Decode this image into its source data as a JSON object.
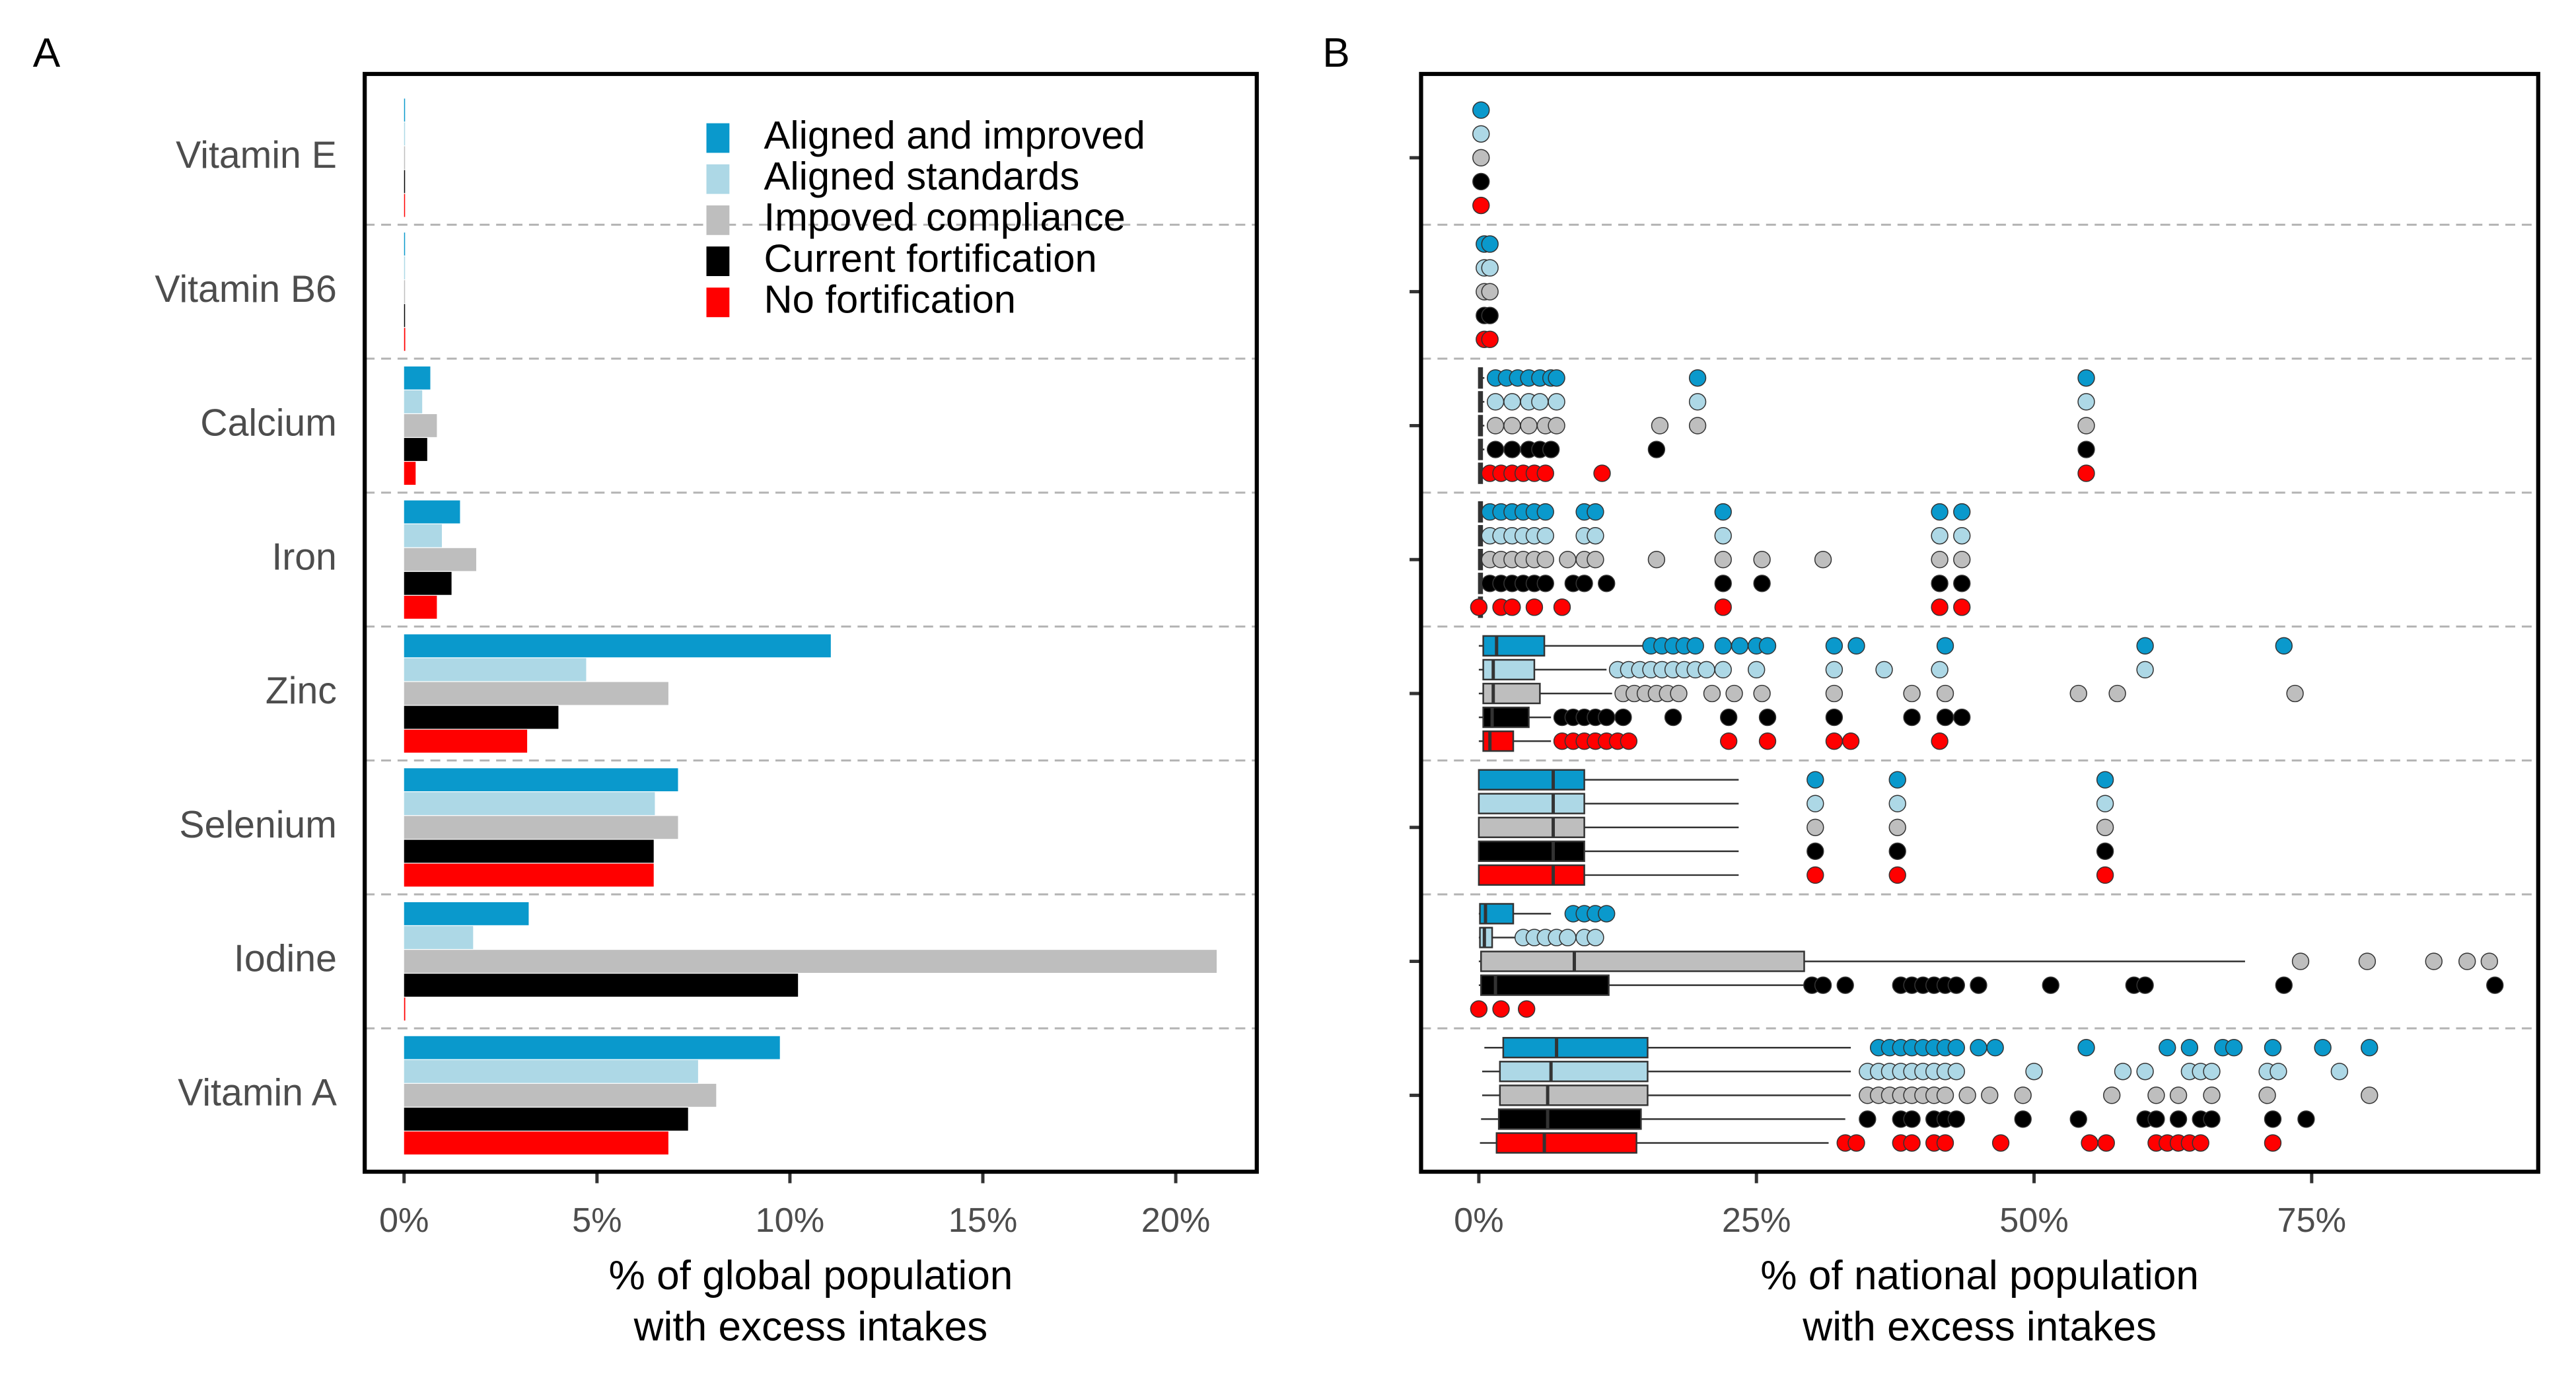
{
  "chart_data": [
    {
      "type": "bar",
      "panel_label": "A",
      "categories": [
        "Vitamin E",
        "Vitamin B6",
        "Calcium",
        "Iron",
        "Zinc",
        "Selenium",
        "Iodine",
        "Vitamin A"
      ],
      "series": [
        {
          "name": "No fortification",
          "color": "#ff0000",
          "values": [
            0,
            0.03,
            0.3,
            0.85,
            3.19,
            6.47,
            0.03,
            6.85
          ]
        },
        {
          "name": "Current fortification",
          "color": "#000000",
          "values": [
            0,
            0.02,
            0.6,
            1.23,
            4.0,
            6.47,
            10.21,
            7.36
          ]
        },
        {
          "name": "Impoved compliance",
          "color": "#bebebe",
          "values": [
            0,
            0.02,
            0.85,
            1.87,
            6.85,
            7.1,
            21.06,
            8.09
          ]
        },
        {
          "name": "Aligned standards",
          "color": "#add8e6",
          "values": [
            0,
            0.02,
            0.47,
            0.98,
            4.72,
            6.5,
            1.79,
            7.62
          ]
        },
        {
          "name": "Aligned and improved",
          "color": "#0a99cc",
          "values": [
            0,
            0.02,
            0.68,
            1.45,
            11.06,
            7.1,
            3.23,
            9.74
          ]
        }
      ],
      "xlim": [
        -1.02,
        22.1
      ],
      "xticks": [
        {
          "value": 0,
          "label": "0%"
        },
        {
          "value": 5,
          "label": "5%"
        },
        {
          "value": 10,
          "label": "10%"
        },
        {
          "value": 15,
          "label": "15%"
        },
        {
          "value": 20,
          "label": "20%"
        }
      ],
      "xlabel": [
        "% of global population",
        "with excess intakes"
      ],
      "legend": "top"
    },
    {
      "type": "box",
      "panel_label": "B",
      "categories": [
        "Vitamin E",
        "Vitamin B6",
        "Calcium",
        "Iron",
        "Zinc",
        "Selenium",
        "Iodine",
        "Vitamin A"
      ],
      "series": [
        {
          "color": "#ff0000",
          "boxes": [
            [
              0,
              0,
              0,
              0,
              0
            ],
            [
              0,
              0,
              0,
              0,
              0
            ],
            [
              0,
              0,
              0.1,
              0.3,
              0.5
            ],
            [
              0,
              0,
              0.1,
              0.3,
              0.5
            ],
            [
              0,
              0.4,
              1.0,
              3.1,
              6.5
            ],
            [
              0,
              0,
              6.7,
              9.5,
              23.4
            ],
            [
              0,
              0,
              0,
              0,
              0
            ],
            [
              0.1,
              1.6,
              5.9,
              14.2,
              31.5
            ]
          ],
          "outliers": [
            [
              0.2
            ],
            [
              0.5,
              1.0
            ],
            [
              1,
              2,
              3,
              4,
              5,
              6,
              11.1,
              54.7
            ],
            [
              0,
              2,
              3,
              5,
              7.5,
              22,
              41.5,
              43.5
            ],
            [
              7.5,
              8.5,
              9.5,
              10.5,
              11.5,
              12.5,
              13.5,
              22.5,
              26,
              32,
              33.5,
              41.5
            ],
            [
              30.3,
              37.7,
              56.4
            ],
            [
              0,
              2,
              4.3
            ],
            [
              33,
              34,
              38,
              39,
              41,
              42,
              47,
              55,
              56.5,
              61,
              62,
              63,
              64,
              65,
              71.5
            ]
          ]
        },
        {
          "color": "#000000",
          "boxes": [
            [
              0,
              0,
              0,
              0,
              0
            ],
            [
              0,
              0,
              0,
              0,
              0
            ],
            [
              0,
              0,
              0.1,
              0.3,
              0.5
            ],
            [
              0,
              0,
              0.1,
              0.3,
              0.5
            ],
            [
              0,
              0.4,
              1.2,
              4.5,
              6.5
            ],
            [
              0,
              0,
              6.7,
              9.5,
              23.4
            ],
            [
              0,
              0.2,
              1.5,
              11.7,
              29.6
            ],
            [
              0.2,
              1.8,
              6.2,
              14.6,
              33
            ]
          ],
          "outliers": [
            [
              0.2
            ],
            [
              0.5,
              1.0
            ],
            [
              1.5,
              3,
              4.5,
              5.5,
              6.5,
              16,
              54.7
            ],
            [
              1,
              2,
              3,
              4,
              5,
              6,
              8.5,
              9.5,
              11.5,
              22,
              25.5,
              41.5,
              43.5
            ],
            [
              7.5,
              8.5,
              9.5,
              10.5,
              11.5,
              13,
              17.5,
              22.5,
              26,
              32,
              39,
              42,
              43.5
            ],
            [
              30.3,
              37.7,
              56.4
            ],
            [
              30,
              31,
              33,
              38,
              39,
              40,
              41,
              42,
              43,
              45,
              51.5,
              59,
              60,
              72.5,
              91.5
            ],
            [
              35,
              38,
              39,
              41,
              42,
              43,
              49,
              54,
              60,
              61,
              63,
              65,
              66,
              71.5,
              74.5
            ]
          ]
        },
        {
          "color": "#bebebe",
          "boxes": [
            [
              0,
              0,
              0,
              0,
              0
            ],
            [
              0,
              0,
              0,
              0,
              0
            ],
            [
              0,
              0,
              0.1,
              0.3,
              0.5
            ],
            [
              0,
              0,
              0.1,
              0.3,
              0.5
            ],
            [
              0,
              0.4,
              1.3,
              5.5,
              12
            ],
            [
              0,
              0,
              6.7,
              9.5,
              23.4
            ],
            [
              0,
              0.2,
              8.6,
              29.3,
              69
            ],
            [
              0.3,
              1.9,
              6.2,
              15.2,
              33.5
            ]
          ],
          "outliers": [
            [
              0.2
            ],
            [
              0.5,
              1.0
            ],
            [
              1.5,
              3,
              4.5,
              6,
              7,
              16.3,
              19.7,
              54.7
            ],
            [
              1,
              2,
              3,
              4,
              5,
              6,
              8,
              9.5,
              10.5,
              16,
              22,
              25.5,
              31,
              41.5,
              43.5
            ],
            [
              13,
              14,
              15,
              16,
              17,
              18,
              21,
              23,
              25.5,
              32,
              39,
              42,
              54,
              57.5,
              73.5
            ],
            [
              30.3,
              37.7,
              56.4
            ],
            [
              74,
              80,
              86,
              89,
              91
            ],
            [
              35,
              36,
              37,
              38,
              39,
              40,
              41,
              42,
              44,
              46,
              49,
              57,
              61,
              63,
              66,
              71,
              80.2
            ]
          ]
        },
        {
          "color": "#add8e6",
          "boxes": [
            [
              0,
              0,
              0,
              0,
              0
            ],
            [
              0,
              0,
              0,
              0,
              0
            ],
            [
              0,
              0,
              0.1,
              0.3,
              0.5
            ],
            [
              0,
              0,
              0.1,
              0.3,
              0.5
            ],
            [
              0,
              0.4,
              1.3,
              5,
              11.5
            ],
            [
              0,
              0,
              6.7,
              9.5,
              23.4
            ],
            [
              0,
              0.1,
              0.5,
              1.2,
              3.5
            ],
            [
              0.3,
              1.9,
              6.5,
              15.2,
              33.5
            ]
          ],
          "outliers": [
            [
              0.2
            ],
            [
              0.5,
              1.0
            ],
            [
              1.5,
              3,
              4.5,
              5.5,
              7,
              19.7,
              54.7
            ],
            [
              1,
              2,
              3,
              4,
              5,
              6,
              9.5,
              10.5,
              22,
              41.5,
              43.5
            ],
            [
              12.5,
              13.5,
              14.5,
              15.5,
              16.5,
              17.5,
              18.5,
              19.5,
              20.5,
              22,
              25,
              32,
              36.5,
              41.5,
              60
            ],
            [
              30.3,
              37.7,
              56.4
            ],
            [
              4,
              5,
              6,
              7,
              8,
              9.5,
              10.5
            ],
            [
              35,
              36,
              37,
              38,
              39,
              40,
              41,
              42,
              43,
              50,
              58,
              60,
              64,
              65,
              66,
              71,
              72,
              77.5
            ]
          ]
        },
        {
          "color": "#0a99cc",
          "boxes": [
            [
              0,
              0,
              0,
              0,
              0
            ],
            [
              0,
              0,
              0,
              0,
              0
            ],
            [
              0,
              0,
              0.1,
              0.3,
              0.5
            ],
            [
              0,
              0,
              0.1,
              0.3,
              0.5
            ],
            [
              0,
              0.4,
              1.6,
              5.9,
              14.8
            ],
            [
              0,
              0,
              6.7,
              9.5,
              23.4
            ],
            [
              0,
              0.1,
              0.6,
              3.1,
              6.5
            ],
            [
              0.5,
              2.2,
              7,
              15.2,
              33.5
            ]
          ],
          "outliers": [
            [
              0.2
            ],
            [
              0.5,
              1.0
            ],
            [
              1.5,
              2.5,
              3.5,
              4.5,
              5.5,
              6.5,
              7,
              19.7,
              54.7
            ],
            [
              1,
              2,
              3,
              4,
              5,
              6,
              9.5,
              10.5,
              22,
              41.5,
              43.5
            ],
            [
              15.5,
              16.5,
              17.5,
              18.5,
              19.5,
              22,
              23.5,
              25,
              26,
              32,
              34,
              42,
              60,
              72.5
            ],
            [
              30.3,
              37.7,
              56.4
            ],
            [
              8.5,
              9.5,
              10.5,
              11.5
            ],
            [
              36,
              37,
              38,
              39,
              40,
              41,
              42,
              43,
              45,
              46.5,
              54.7,
              62,
              64,
              67,
              68,
              71.5,
              76,
              80.2
            ]
          ]
        }
      ],
      "xlim": [
        -5.2,
        95.4
      ],
      "xticks": [
        {
          "value": 0,
          "label": "0%"
        },
        {
          "value": 25,
          "label": "25%"
        },
        {
          "value": 50,
          "label": "50%"
        },
        {
          "value": 75,
          "label": "75%"
        }
      ],
      "xlabel": [
        "% of national population",
        "with excess intakes"
      ]
    }
  ]
}
